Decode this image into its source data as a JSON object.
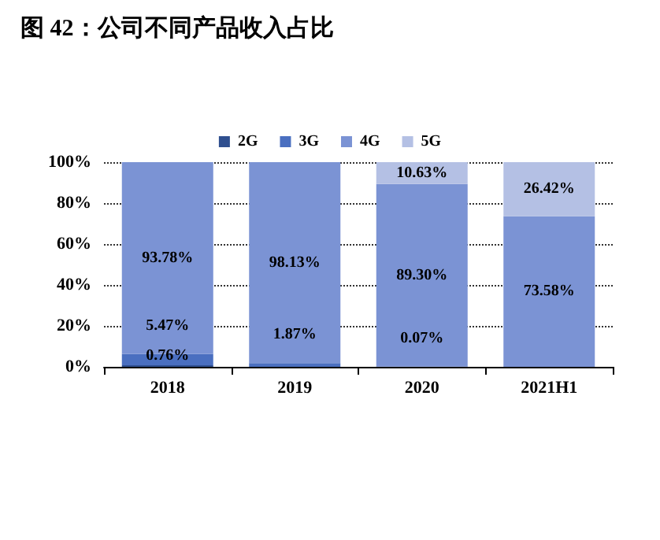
{
  "chart_data": {
    "type": "bar",
    "title": "图 42：公司不同产品收入占比",
    "categories": [
      "2018",
      "2019",
      "2020",
      "2021H1"
    ],
    "stacked": true,
    "series": [
      {
        "name": "2G",
        "color": "#2f4f8f",
        "values": [
          0.76,
          0,
          0,
          0
        ],
        "value_labels": [
          "0.76%",
          null,
          null,
          null
        ]
      },
      {
        "name": "3G",
        "color": "#4a6fc0",
        "values": [
          5.47,
          1.87,
          0.07,
          0
        ],
        "value_labels": [
          "5.47%",
          "1.87%",
          "0.07%",
          null
        ]
      },
      {
        "name": "4G",
        "color": "#7b93d4",
        "values": [
          93.78,
          98.13,
          89.3,
          73.58
        ],
        "value_labels": [
          "93.78%",
          "98.13%",
          "89.30%",
          "73.58%"
        ]
      },
      {
        "name": "5G",
        "color": "#b4c0e4",
        "values": [
          0,
          0,
          10.63,
          26.42
        ],
        "value_labels": [
          null,
          null,
          "10.63%",
          "26.42%"
        ]
      }
    ],
    "ylim": [
      0,
      100
    ],
    "yticks": [
      {
        "value": 0,
        "label": "0%"
      },
      {
        "value": 20,
        "label": "20%"
      },
      {
        "value": 40,
        "label": "40%"
      },
      {
        "value": 60,
        "label": "60%"
      },
      {
        "value": 80,
        "label": "80%"
      },
      {
        "value": 100,
        "label": "100%"
      }
    ],
    "grid": "y",
    "legend": "top"
  }
}
